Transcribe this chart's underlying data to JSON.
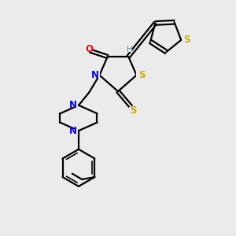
{
  "background_color": "#ebebeb",
  "bond_color": "#000000",
  "atom_colors": {
    "O": "#ff0000",
    "N": "#0000ff",
    "S": "#ccaa00",
    "H": "#4a8fa8"
  },
  "figsize": [
    3.0,
    3.0
  ],
  "dpi": 100,
  "lw": 1.6,
  "lw_inner": 1.2
}
